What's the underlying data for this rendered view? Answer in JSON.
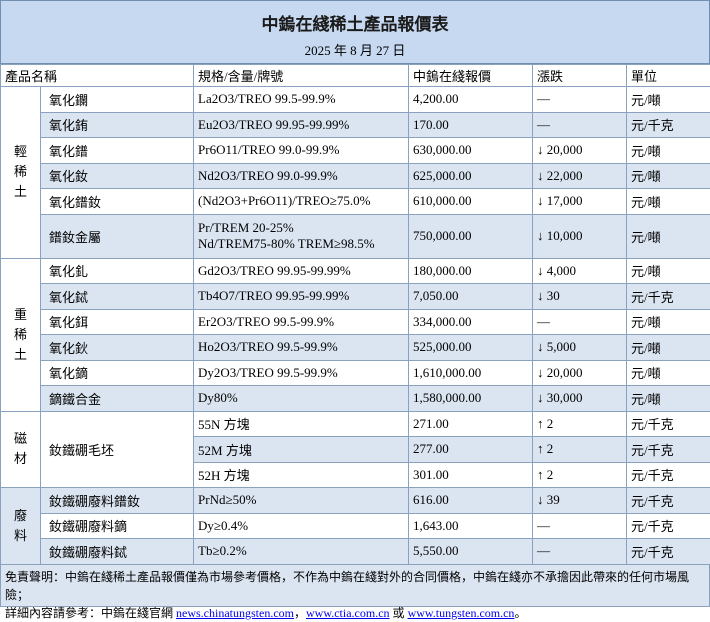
{
  "header": {
    "title": "中鎢在綫稀土產品報價表",
    "date": "2025 年 8 月 27 日"
  },
  "table": {
    "columns": [
      "產品名稱",
      "規格/含量/牌號",
      "中鎢在綫報價",
      "漲跌",
      "單位"
    ],
    "groups": [
      {
        "label": "輕稀土",
        "rows": [
          {
            "name": "氧化鑭",
            "spec": "La2O3/TREO 99.5-99.9%",
            "price": "4,200.00",
            "change": "—",
            "unit": "元/噸"
          },
          {
            "name": "氧化銪",
            "spec": "Eu2O3/TREO 99.95-99.99%",
            "price": "170.00",
            "change": "—",
            "unit": "元/千克"
          },
          {
            "name": "氧化鐠",
            "spec": "Pr6O11/TREO 99.0-99.9%",
            "price": "630,000.00",
            "change": "↓ 20,000",
            "unit": "元/噸"
          },
          {
            "name": "氧化釹",
            "spec": "Nd2O3/TREO 99.0-99.9%",
            "price": "625,000.00",
            "change": "↓ 22,000",
            "unit": "元/噸"
          },
          {
            "name": "氧化鐠釹",
            "spec": "(Nd2O3+Pr6O11)/TREO≥75.0%",
            "price": "610,000.00",
            "change": "↓ 17,000",
            "unit": "元/噸"
          },
          {
            "name": "鐠釹金屬",
            "spec": [
              "Pr/TREM 20-25%",
              "Nd/TREM75-80% TREM≥98.5%"
            ],
            "price": "750,000.00",
            "change": "↓ 10,000",
            "unit": "元/噸"
          }
        ]
      },
      {
        "label": "重稀土",
        "rows": [
          {
            "name": "氧化釓",
            "spec": "Gd2O3/TREO 99.95-99.99%",
            "price": "180,000.00",
            "change": "↓ 4,000",
            "unit": "元/噸"
          },
          {
            "name": "氧化鋱",
            "spec": "Tb4O7/TREO 99.95-99.99%",
            "price": "7,050.00",
            "change": "↓ 30",
            "unit": "元/千克"
          },
          {
            "name": "氧化鉺",
            "spec": "Er2O3/TREO 99.5-99.9%",
            "price": "334,000.00",
            "change": "—",
            "unit": "元/噸"
          },
          {
            "name": "氧化鈥",
            "spec": "Ho2O3/TREO 99.5-99.9%",
            "price": "525,000.00",
            "change": "↓ 5,000",
            "unit": "元/噸"
          },
          {
            "name": "氧化鏑",
            "spec": "Dy2O3/TREO 99.5-99.9%",
            "price": "1,610,000.00",
            "change": "↓ 20,000",
            "unit": "元/噸"
          },
          {
            "name": "鏑鐵合金",
            "spec": "Dy80%",
            "price": "1,580,000.00",
            "change": "↓ 30,000",
            "unit": "元/噸"
          }
        ]
      },
      {
        "label": "磁材",
        "rows": [
          {
            "name": "釹鐵硼毛坯",
            "variants": [
              {
                "spec": "55N 方塊",
                "price": "271.00",
                "change": "↑ 2",
                "unit": "元/千克"
              },
              {
                "spec": "52M 方塊",
                "price": "277.00",
                "change": "↑ 2",
                "unit": "元/千克"
              },
              {
                "spec": "52H 方塊",
                "price": "301.00",
                "change": "↑ 2",
                "unit": "元/千克"
              }
            ]
          }
        ]
      },
      {
        "label": "廢料",
        "rows": [
          {
            "name": "釹鐵硼廢料鐠釹",
            "spec": "PrNd≥50%",
            "price": "616.00",
            "change": "↓ 39",
            "unit": "元/千克"
          },
          {
            "name": "釹鐵硼廢料鏑",
            "spec": "Dy≥0.4%",
            "price": "1,643.00",
            "change": "—",
            "unit": "元/千克"
          },
          {
            "name": "釹鐵硼廢料鋱",
            "spec": "Tb≥0.2%",
            "price": "5,550.00",
            "change": "—",
            "unit": "元/千克"
          }
        ]
      }
    ]
  },
  "footer": {
    "disclaimer": "免責聲明：中鎢在綫稀土產品報價僅為市場參考價格，不作為中鎢在綫對外的合同價格，中鎢在綫亦不承擔因此帶來的任何市場風險；",
    "reference": [
      "詳細內容請參考：中鎢在綫官網 ",
      "news.chinatungsten.com",
      "，",
      "www.ctia.com.cn",
      " 或 ",
      "www.tungsten.com.cn",
      "。"
    ]
  }
}
